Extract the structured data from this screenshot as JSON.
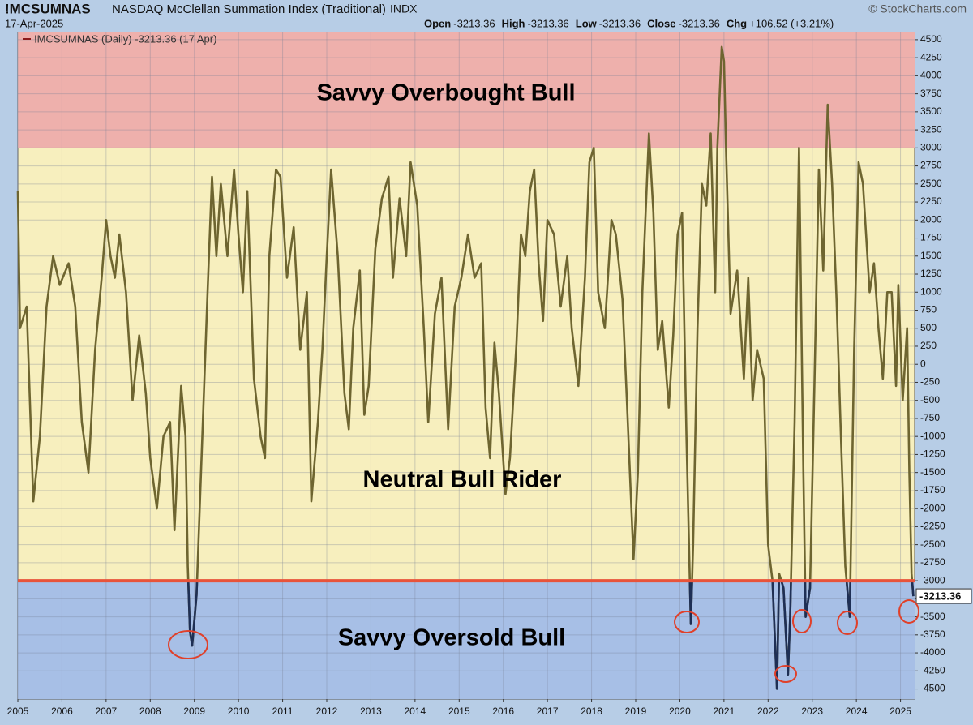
{
  "chart_data": {
    "type": "line",
    "symbol": "!MCSUMNAS",
    "title": "NASDAQ McClellan Summation Index (Traditional)",
    "exchange": "INDX",
    "date": "17-Apr-2025",
    "credit": "© StockCharts.com",
    "quote": [
      {
        "label": "Open",
        "value": -3213.36
      },
      {
        "label": "High",
        "value": -3213.36
      },
      {
        "label": "Low",
        "value": -3213.36
      },
      {
        "label": "Close",
        "value": -3213.36
      },
      {
        "label": "Chg",
        "value": "+106.52 (+3.21%)"
      }
    ],
    "zones": {
      "upper": {
        "label": "Savvy Overbought Bull",
        "from": 3000,
        "color": "#eeb0ac"
      },
      "middle": {
        "label": "Neutral Bull Rider",
        "color": "#f7efbe"
      },
      "lower": {
        "label": "Savvy Oversold Bull",
        "to": -3000,
        "color": "#a7bfe6"
      }
    },
    "threshold_line": {
      "value": -3000,
      "color": "#e8533a"
    },
    "xlim": [
      2005,
      2025.32
    ],
    "xticks": [
      2005,
      2006,
      2007,
      2008,
      2009,
      2010,
      2011,
      2012,
      2013,
      2014,
      2015,
      2016,
      2017,
      2018,
      2019,
      2020,
      2021,
      2022,
      2023,
      2024,
      2025
    ],
    "ylim": [
      -4640,
      4600
    ],
    "yticks": [
      -4500,
      -4250,
      -4000,
      -3750,
      -3500,
      -3250,
      -3000,
      -2750,
      -2500,
      -2250,
      -2000,
      -1750,
      -1500,
      -1250,
      -1000,
      -750,
      -500,
      -250,
      0,
      250,
      500,
      750,
      1000,
      1250,
      1500,
      1750,
      2000,
      2250,
      2500,
      2750,
      3000,
      3250,
      3500,
      3750,
      4000,
      4250,
      4500
    ],
    "grid": true,
    "x": [
      2005.0,
      2005.05,
      2005.2,
      2005.35,
      2005.5,
      2005.65,
      2005.8,
      2005.95,
      2006.15,
      2006.3,
      2006.45,
      2006.6,
      2006.75,
      2006.9,
      2007.0,
      2007.1,
      2007.2,
      2007.3,
      2007.45,
      2007.6,
      2007.75,
      2007.9,
      2008.0,
      2008.15,
      2008.3,
      2008.45,
      2008.55,
      2008.7,
      2008.8,
      2008.85,
      2008.9,
      2008.95,
      2009.05,
      2009.15,
      2009.3,
      2009.4,
      2009.5,
      2009.6,
      2009.75,
      2009.9,
      2010.0,
      2010.1,
      2010.2,
      2010.35,
      2010.5,
      2010.6,
      2010.7,
      2010.85,
      2010.95,
      2011.1,
      2011.25,
      2011.4,
      2011.55,
      2011.65,
      2011.8,
      2011.9,
      2012.0,
      2012.1,
      2012.25,
      2012.4,
      2012.5,
      2012.6,
      2012.75,
      2012.85,
      2012.95,
      2013.1,
      2013.25,
      2013.4,
      2013.5,
      2013.65,
      2013.8,
      2013.9,
      2014.05,
      2014.2,
      2014.3,
      2014.45,
      2014.6,
      2014.75,
      2014.9,
      2015.05,
      2015.2,
      2015.35,
      2015.5,
      2015.6,
      2015.7,
      2015.8,
      2015.9,
      2016.05,
      2016.15,
      2016.3,
      2016.4,
      2016.5,
      2016.6,
      2016.7,
      2016.8,
      2016.9,
      2017.0,
      2017.15,
      2017.3,
      2017.45,
      2017.55,
      2017.7,
      2017.85,
      2017.95,
      2018.05,
      2018.15,
      2018.3,
      2018.45,
      2018.55,
      2018.7,
      2018.8,
      2018.95,
      2019.05,
      2019.15,
      2019.3,
      2019.4,
      2019.5,
      2019.6,
      2019.75,
      2019.85,
      2019.95,
      2020.05,
      2020.15,
      2020.25,
      2020.3,
      2020.4,
      2020.5,
      2020.6,
      2020.7,
      2020.8,
      2020.85,
      2020.95,
      2021.0,
      2021.05,
      2021.15,
      2021.3,
      2021.45,
      2021.55,
      2021.65,
      2021.75,
      2021.9,
      2022.0,
      2022.1,
      2022.2,
      2022.25,
      2022.35,
      2022.45,
      2022.5,
      2022.6,
      2022.7,
      2022.8,
      2022.85,
      2022.95,
      2023.05,
      2023.15,
      2023.25,
      2023.35,
      2023.45,
      2023.55,
      2023.65,
      2023.75,
      2023.85,
      2023.95,
      2024.05,
      2024.15,
      2024.3,
      2024.4,
      2024.5,
      2024.6,
      2024.7,
      2024.8,
      2024.9,
      2024.95,
      2025.05,
      2025.15,
      2025.2,
      2025.25,
      2025.29
    ],
    "series": [
      {
        "name": "!MCSUMNAS (Daily) -3213.36 (17 Apr)",
        "color": "#6e6530",
        "low_color": "#1e2f55",
        "values": [
          2400,
          500,
          800,
          -1900,
          -1000,
          800,
          1500,
          1100,
          1400,
          800,
          -800,
          -1500,
          200,
          1200,
          2000,
          1500,
          1200,
          1800,
          1000,
          -500,
          400,
          -400,
          -1300,
          -2000,
          -1000,
          -800,
          -2300,
          -300,
          -1000,
          -2800,
          -3700,
          -3900,
          -3200,
          -1500,
          1000,
          2600,
          1500,
          2500,
          1500,
          2700,
          1800,
          1000,
          2400,
          -200,
          -1000,
          -1300,
          1500,
          2700,
          2600,
          1200,
          1900,
          200,
          1000,
          -1900,
          -800,
          200,
          1500,
          2700,
          1500,
          -400,
          -900,
          500,
          1300,
          -700,
          -300,
          1600,
          2300,
          2600,
          1200,
          2300,
          1500,
          2800,
          2200,
          500,
          -800,
          700,
          1200,
          -900,
          800,
          1200,
          1800,
          1200,
          1400,
          -600,
          -1300,
          300,
          -400,
          -1800,
          -1300,
          300,
          1800,
          1500,
          2400,
          2700,
          1400,
          600,
          2000,
          1800,
          800,
          1500,
          500,
          -300,
          1200,
          2800,
          3000,
          1000,
          500,
          2000,
          1800,
          900,
          -500,
          -2700,
          -1500,
          1000,
          3200,
          2100,
          200,
          600,
          -600,
          400,
          1800,
          2100,
          -1000,
          -3600,
          -2500,
          500,
          2500,
          2200,
          3200,
          1000,
          3000,
          4400,
          4200,
          2900,
          700,
          1300,
          -200,
          1200,
          -500,
          200,
          -200,
          -2500,
          -3000,
          -4500,
          -2900,
          -3100,
          -4300,
          -3500,
          -800,
          3000,
          -1500,
          -3500,
          -3100,
          -300,
          2700,
          1300,
          3600,
          2500,
          900,
          -1000,
          -2800,
          -3500,
          200,
          2800,
          2500,
          1000,
          1400,
          500,
          -200,
          1000,
          1000,
          -300,
          1100,
          -500,
          500,
          -1500,
          -2900,
          -3213.36
        ]
      }
    ]
  }
}
